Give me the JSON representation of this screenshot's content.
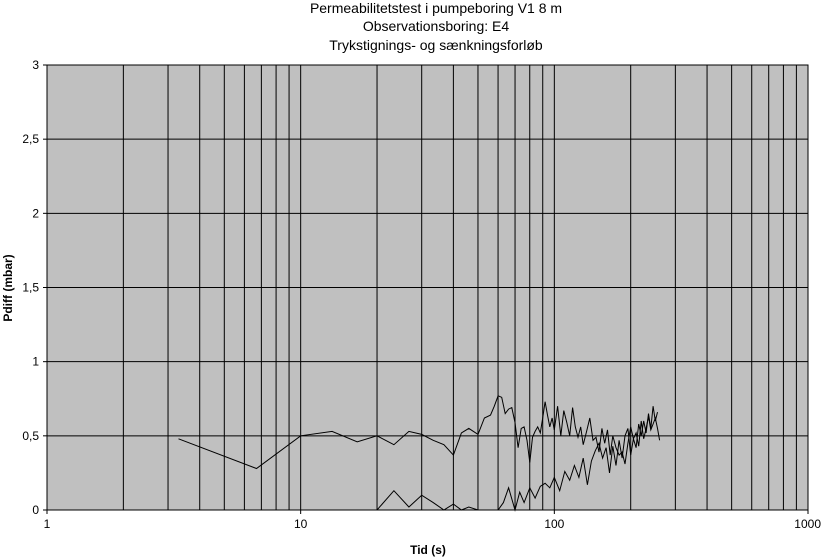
{
  "chart_data": {
    "type": "line",
    "title_lines": [
      "Permeabilitetstest i pumpeboring V1 8 m",
      "Observationsboring: E4",
      "Trykstignings- og sænkningsforløb"
    ],
    "xlabel": "Tid (s)",
    "ylabel": "Pdiff (mbar)",
    "x_scale": "log",
    "xlim": [
      1,
      1000
    ],
    "ylim": [
      0,
      3
    ],
    "x_ticks": [
      "1",
      "10",
      "100",
      "1000"
    ],
    "y_ticks": [
      "0",
      "0,5",
      "1",
      "1,5",
      "2",
      "2,5",
      "3"
    ],
    "x_gridlines": [
      2,
      3,
      4,
      5,
      6,
      7,
      8,
      9,
      10,
      20,
      30,
      40,
      50,
      60,
      70,
      80,
      90,
      100,
      200,
      300,
      400,
      500,
      600,
      700,
      800,
      900
    ],
    "y_gridlines": [
      0.5,
      1,
      1.5,
      2,
      2.5,
      3
    ],
    "grid": true,
    "legend": "none",
    "colors": {
      "plot_area": "#c0c0c0",
      "line": "#000000",
      "grid": "#000000"
    },
    "series": [
      {
        "x": [
          3.3,
          6.7,
          10,
          13.3,
          16.7,
          20,
          23.3,
          26.7,
          30,
          33.3,
          36.7,
          40,
          43,
          46,
          50,
          53,
          56,
          58,
          60,
          62,
          64,
          66,
          68,
          70,
          72,
          74,
          76,
          78,
          80,
          82,
          84,
          86,
          88,
          90,
          92,
          94,
          96,
          98,
          100,
          103,
          106,
          109,
          112,
          115,
          118,
          121,
          124,
          127,
          130,
          134,
          138,
          142,
          146,
          150,
          154,
          158,
          162,
          166,
          170,
          175,
          180,
          185,
          190,
          195,
          200,
          205,
          210,
          215,
          220,
          225,
          230,
          235,
          240,
          245,
          250,
          255,
          260
        ],
        "y": [
          0.48,
          0.28,
          0.5,
          0.53,
          0.46,
          0.5,
          0.44,
          0.53,
          0.51,
          0.47,
          0.44,
          0.37,
          0.52,
          0.55,
          0.51,
          0.62,
          0.64,
          0.7,
          0.77,
          0.76,
          0.65,
          0.68,
          0.69,
          0.59,
          0.42,
          0.55,
          0.56,
          0.47,
          0.32,
          0.49,
          0.53,
          0.56,
          0.52,
          0.62,
          0.73,
          0.64,
          0.56,
          0.62,
          0.54,
          0.7,
          0.5,
          0.67,
          0.59,
          0.5,
          0.69,
          0.56,
          0.49,
          0.56,
          0.44,
          0.53,
          0.62,
          0.47,
          0.49,
          0.39,
          0.55,
          0.45,
          0.54,
          0.37,
          0.5,
          0.42,
          0.37,
          0.39,
          0.31,
          0.45,
          0.56,
          0.48,
          0.52,
          0.43,
          0.6,
          0.48,
          0.55,
          0.63,
          0.54,
          0.58,
          0.62,
          0.55,
          0.47
        ]
      },
      {
        "x": [
          20,
          23.3,
          26.7,
          30,
          33.3,
          36.7,
          40,
          43,
          46,
          50,
          53,
          56,
          60,
          63,
          66,
          70,
          73,
          76,
          80,
          84,
          88,
          92,
          96,
          100,
          105,
          110,
          115,
          120,
          125,
          130,
          135,
          140,
          145,
          150,
          155,
          160,
          165,
          170,
          175,
          180,
          185,
          190,
          195,
          200,
          205,
          210,
          215,
          220,
          225,
          230,
          235,
          240,
          245,
          250,
          255
        ],
        "y": [
          0.0,
          0.13,
          0.02,
          0.1,
          0.05,
          0.0,
          0.04,
          0.0,
          0.02,
          0.0,
          0.0,
          0.0,
          0.0,
          0.05,
          0.15,
          0.0,
          0.12,
          0.05,
          0.15,
          0.08,
          0.16,
          0.18,
          0.15,
          0.22,
          0.13,
          0.26,
          0.2,
          0.3,
          0.22,
          0.35,
          0.17,
          0.33,
          0.4,
          0.45,
          0.35,
          0.42,
          0.25,
          0.43,
          0.3,
          0.47,
          0.35,
          0.5,
          0.55,
          0.37,
          0.48,
          0.42,
          0.58,
          0.5,
          0.6,
          0.52,
          0.65,
          0.55,
          0.7,
          0.6,
          0.66
        ]
      }
    ]
  }
}
